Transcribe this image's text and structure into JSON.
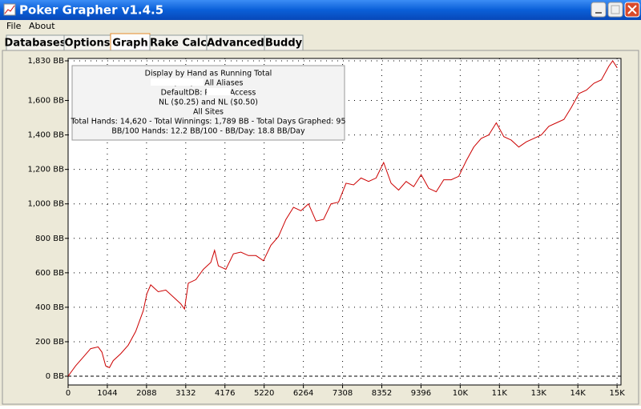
{
  "window": {
    "title": "Poker Grapher v1.4.5"
  },
  "menu": [
    "File",
    "About"
  ],
  "tabs": [
    "Databases",
    "Options",
    "Graph",
    "Rake Calc",
    "Advanced",
    "Buddy"
  ],
  "active_tab": 2,
  "chart_data": {
    "type": "line",
    "info_lines": [
      "Display by Hand as Running Total",
      "(PTY) + All Aliases",
      "DefaultDB: PTH:           - Access",
      "NL ($0.25) and NL ($0.50)",
      "All Sites",
      "Total Hands: 14,620 - Total Winnings: 1,789 BB - Total Days Graphed: 95",
      "BB/100 Hands: 12.2 BB/100 - BB/Day: 18.8 BB/Day"
    ],
    "x": [
      0,
      200,
      400,
      600,
      800,
      900,
      1000,
      1100,
      1200,
      1400,
      1600,
      1800,
      2000,
      2100,
      2200,
      2400,
      2600,
      2800,
      3000,
      3100,
      3200,
      3400,
      3600,
      3800,
      3900,
      4000,
      4200,
      4400,
      4600,
      4800,
      5000,
      5200,
      5400,
      5600,
      5800,
      6000,
      6200,
      6400,
      6600,
      6800,
      7000,
      7200,
      7400,
      7600,
      7800,
      8000,
      8200,
      8400,
      8600,
      8800,
      9000,
      9200,
      9400,
      9600,
      9800,
      10000,
      10200,
      10400,
      10600,
      10800,
      11000,
      11200,
      11400,
      11600,
      11800,
      12000,
      12200,
      12400,
      12600,
      12800,
      13000,
      13200,
      13400,
      13600,
      13800,
      14000,
      14200,
      14400,
      14500,
      14620
    ],
    "series": [
      {
        "color": "#cc0000",
        "values": [
          0,
          60,
          110,
          160,
          170,
          140,
          60,
          50,
          90,
          130,
          180,
          260,
          380,
          480,
          530,
          490,
          500,
          460,
          420,
          390,
          540,
          560,
          620,
          660,
          730,
          640,
          620,
          710,
          720,
          700,
          700,
          670,
          760,
          810,
          910,
          980,
          960,
          1000,
          900,
          910,
          1000,
          1010,
          1120,
          1110,
          1150,
          1130,
          1150,
          1240,
          1120,
          1080,
          1130,
          1100,
          1170,
          1090,
          1070,
          1140,
          1140,
          1160,
          1250,
          1330,
          1380,
          1400,
          1470,
          1390,
          1370,
          1330,
          1360,
          1380,
          1400,
          1450,
          1470,
          1490,
          1560,
          1640,
          1660,
          1700,
          1720,
          1800,
          1830,
          1789
        ]
      }
    ],
    "xlim": [
      0,
      14720
    ],
    "ylim": [
      -51,
      1844
    ],
    "xticks": [
      0,
      1044,
      2088,
      3132,
      4176,
      5220,
      6264,
      7308,
      8352,
      9396,
      {
        "value": 10440,
        "label": "10K"
      },
      {
        "value": 11484,
        "label": "11K"
      },
      {
        "value": 12528,
        "label": "13K"
      },
      {
        "value": 13572,
        "label": "14K"
      },
      {
        "value": 14616,
        "label": "15K"
      }
    ],
    "yticks": [
      {
        "value": 0,
        "label": "0 BB"
      },
      {
        "value": 200,
        "label": "200 BB"
      },
      {
        "value": 400,
        "label": "400 BB"
      },
      {
        "value": 600,
        "label": "600 BB"
      },
      {
        "value": 800,
        "label": "800 BB"
      },
      {
        "value": 1000,
        "label": "1,000 BB"
      },
      {
        "value": 1200,
        "label": "1,200 BB"
      },
      {
        "value": 1400,
        "label": "1,400 BB"
      },
      {
        "value": 1600,
        "label": "1,600 BB"
      },
      {
        "value": 1830,
        "label": "1,830 BB"
      }
    ],
    "grid": true
  }
}
